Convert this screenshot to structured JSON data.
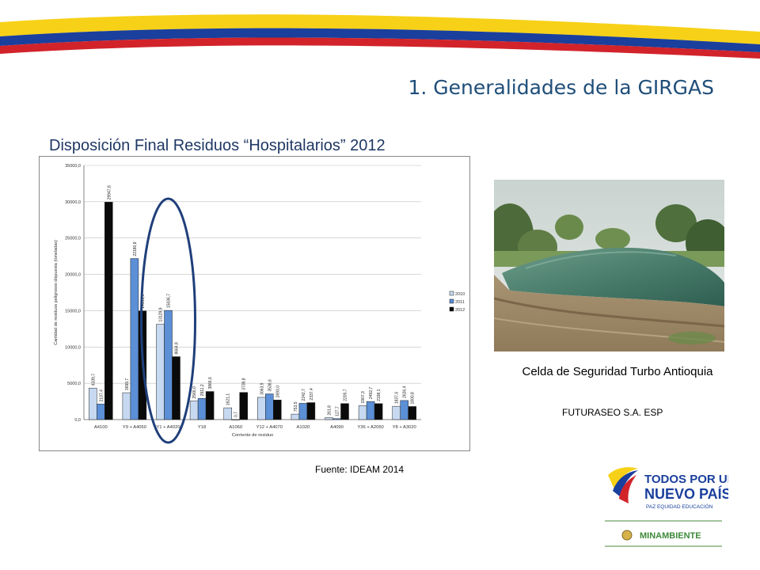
{
  "slide": {
    "title": "1. Generalidades de la GIRGAS",
    "chart_title": "Disposición Final Residuos “Hospitalarios” 2012",
    "source": "Fuente: IDEAM 2014",
    "photo_caption": "Celda de Seguridad Turbo Antioquia",
    "photo_credit": "FUTURASEO S.A. ESP"
  },
  "logo": {
    "line1": "TODOS POR UN",
    "line2": "NUEVO PAÍS",
    "tagline": "PAZ  EQUIDAD  EDUCACIÓN",
    "ministry": "MINAMBIENTE"
  },
  "colors": {
    "title_blue": "#1f4e79",
    "flag_yellow": "#f7d117",
    "flag_blue": "#1a3f9c",
    "flag_red": "#d2232a",
    "series_2010": "#c6d9f1",
    "series_2011": "#5b8fd6",
    "series_2012": "#0a0a0a",
    "highlight_ellipse": "#1f3f7a"
  },
  "chart_data": {
    "type": "bar",
    "xlabel": "Corriente de residuo",
    "ylabel": "Cantidad de residuos peligrosos dispuesta (toneladas)",
    "ylim": [
      0,
      35000
    ],
    "yticks": [
      "0,0",
      "5000,0",
      "10000,0",
      "15000,0",
      "20000,0",
      "25000,0",
      "30000,0",
      "35000,0"
    ],
    "categories": [
      "A4100",
      "Y9 + A4060",
      "Y1 + A4020",
      "Y18",
      "A1060",
      "Y12 + A4070",
      "A1020",
      "A4090",
      "Y36 + A2050",
      "Y8 + A3020"
    ],
    "series": [
      {
        "name": "2010",
        "values": [
          4339.7,
          3699.7,
          13129.9,
          2566.0,
          1621.1,
          3063.9,
          753.5,
          261.8,
          1907.3,
          1837.6
        ],
        "labels": [
          "4339,7",
          "3699,7",
          "13129,9",
          "2566,0",
          "1621,1",
          "3063,9",
          "753,5",
          "261,8",
          "1907,3",
          "1837,6"
        ]
      },
      {
        "name": "2011",
        "values": [
          2137.4,
          22180.8,
          15036.7,
          2911.2,
          0.7,
          3538.6,
          2242.7,
          127.7,
          2492.7,
          2626.4
        ],
        "labels": [
          "2137,4",
          "22180,8",
          "15036,7",
          "2911,2",
          "0,7",
          "3538,6",
          "2242,7",
          "127,7",
          "2492,7",
          "2626,4"
        ]
      },
      {
        "name": "2012",
        "values": [
          29947.8,
          14961.9,
          8664.8,
          3866.6,
          3739.8,
          2693.0,
          2337.4,
          2205.7,
          2198.1,
          1800.8
        ],
        "labels": [
          "29947,8",
          "14961,9",
          "8664,8",
          "3866,6",
          "3739,8",
          "2693,0",
          "2337,4",
          "2205,7",
          "2198,1",
          "1800,8"
        ]
      }
    ],
    "legend_position": "right",
    "highlighted_category": "Y1 + A4020"
  }
}
